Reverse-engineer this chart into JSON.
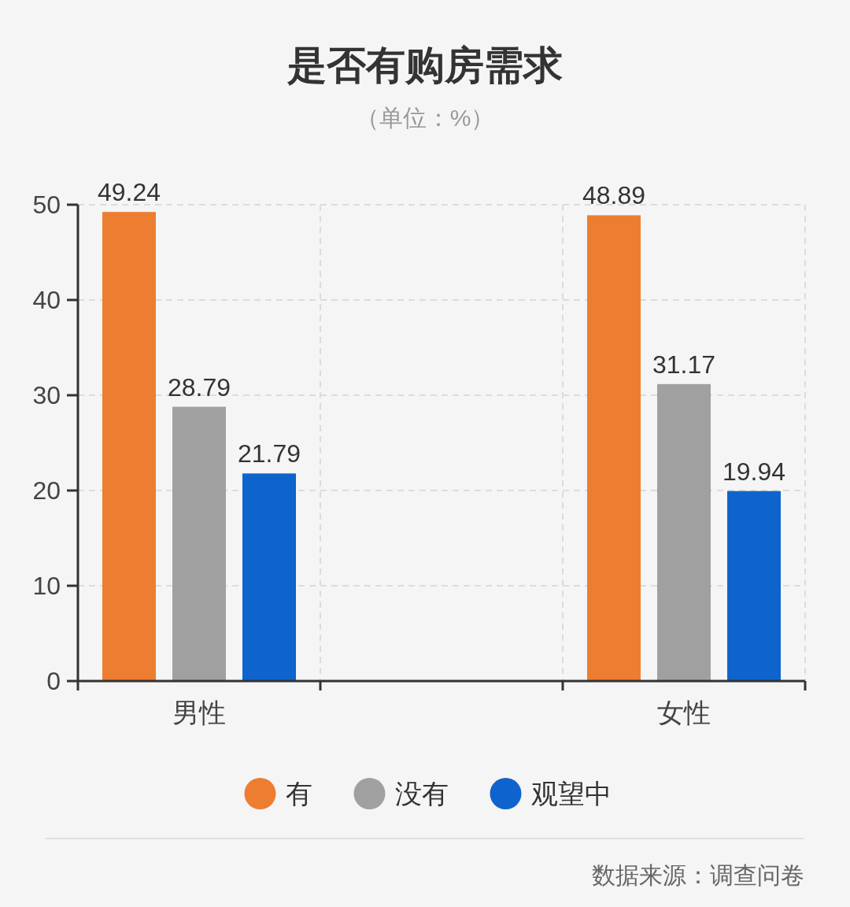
{
  "chart_data": {
    "type": "bar",
    "title": "是否有购房需求",
    "subtitle": "（单位：%）",
    "categories": [
      "男性",
      null,
      "女性"
    ],
    "series": [
      {
        "name": "有",
        "color": "#ed7d31",
        "values": [
          49.24,
          null,
          48.89
        ]
      },
      {
        "name": "没有",
        "color": "#a0a0a0",
        "values": [
          28.79,
          null,
          31.17
        ]
      },
      {
        "name": "观望中",
        "color": "#0e64cc",
        "values": [
          21.79,
          null,
          19.94
        ]
      }
    ],
    "ylim": [
      0,
      50
    ],
    "yticks": [
      0,
      10,
      20,
      30,
      40,
      50
    ],
    "grid": true,
    "legend": "bottom",
    "data_labels": true,
    "annotations": [
      "数据来源：调查问卷"
    ]
  }
}
